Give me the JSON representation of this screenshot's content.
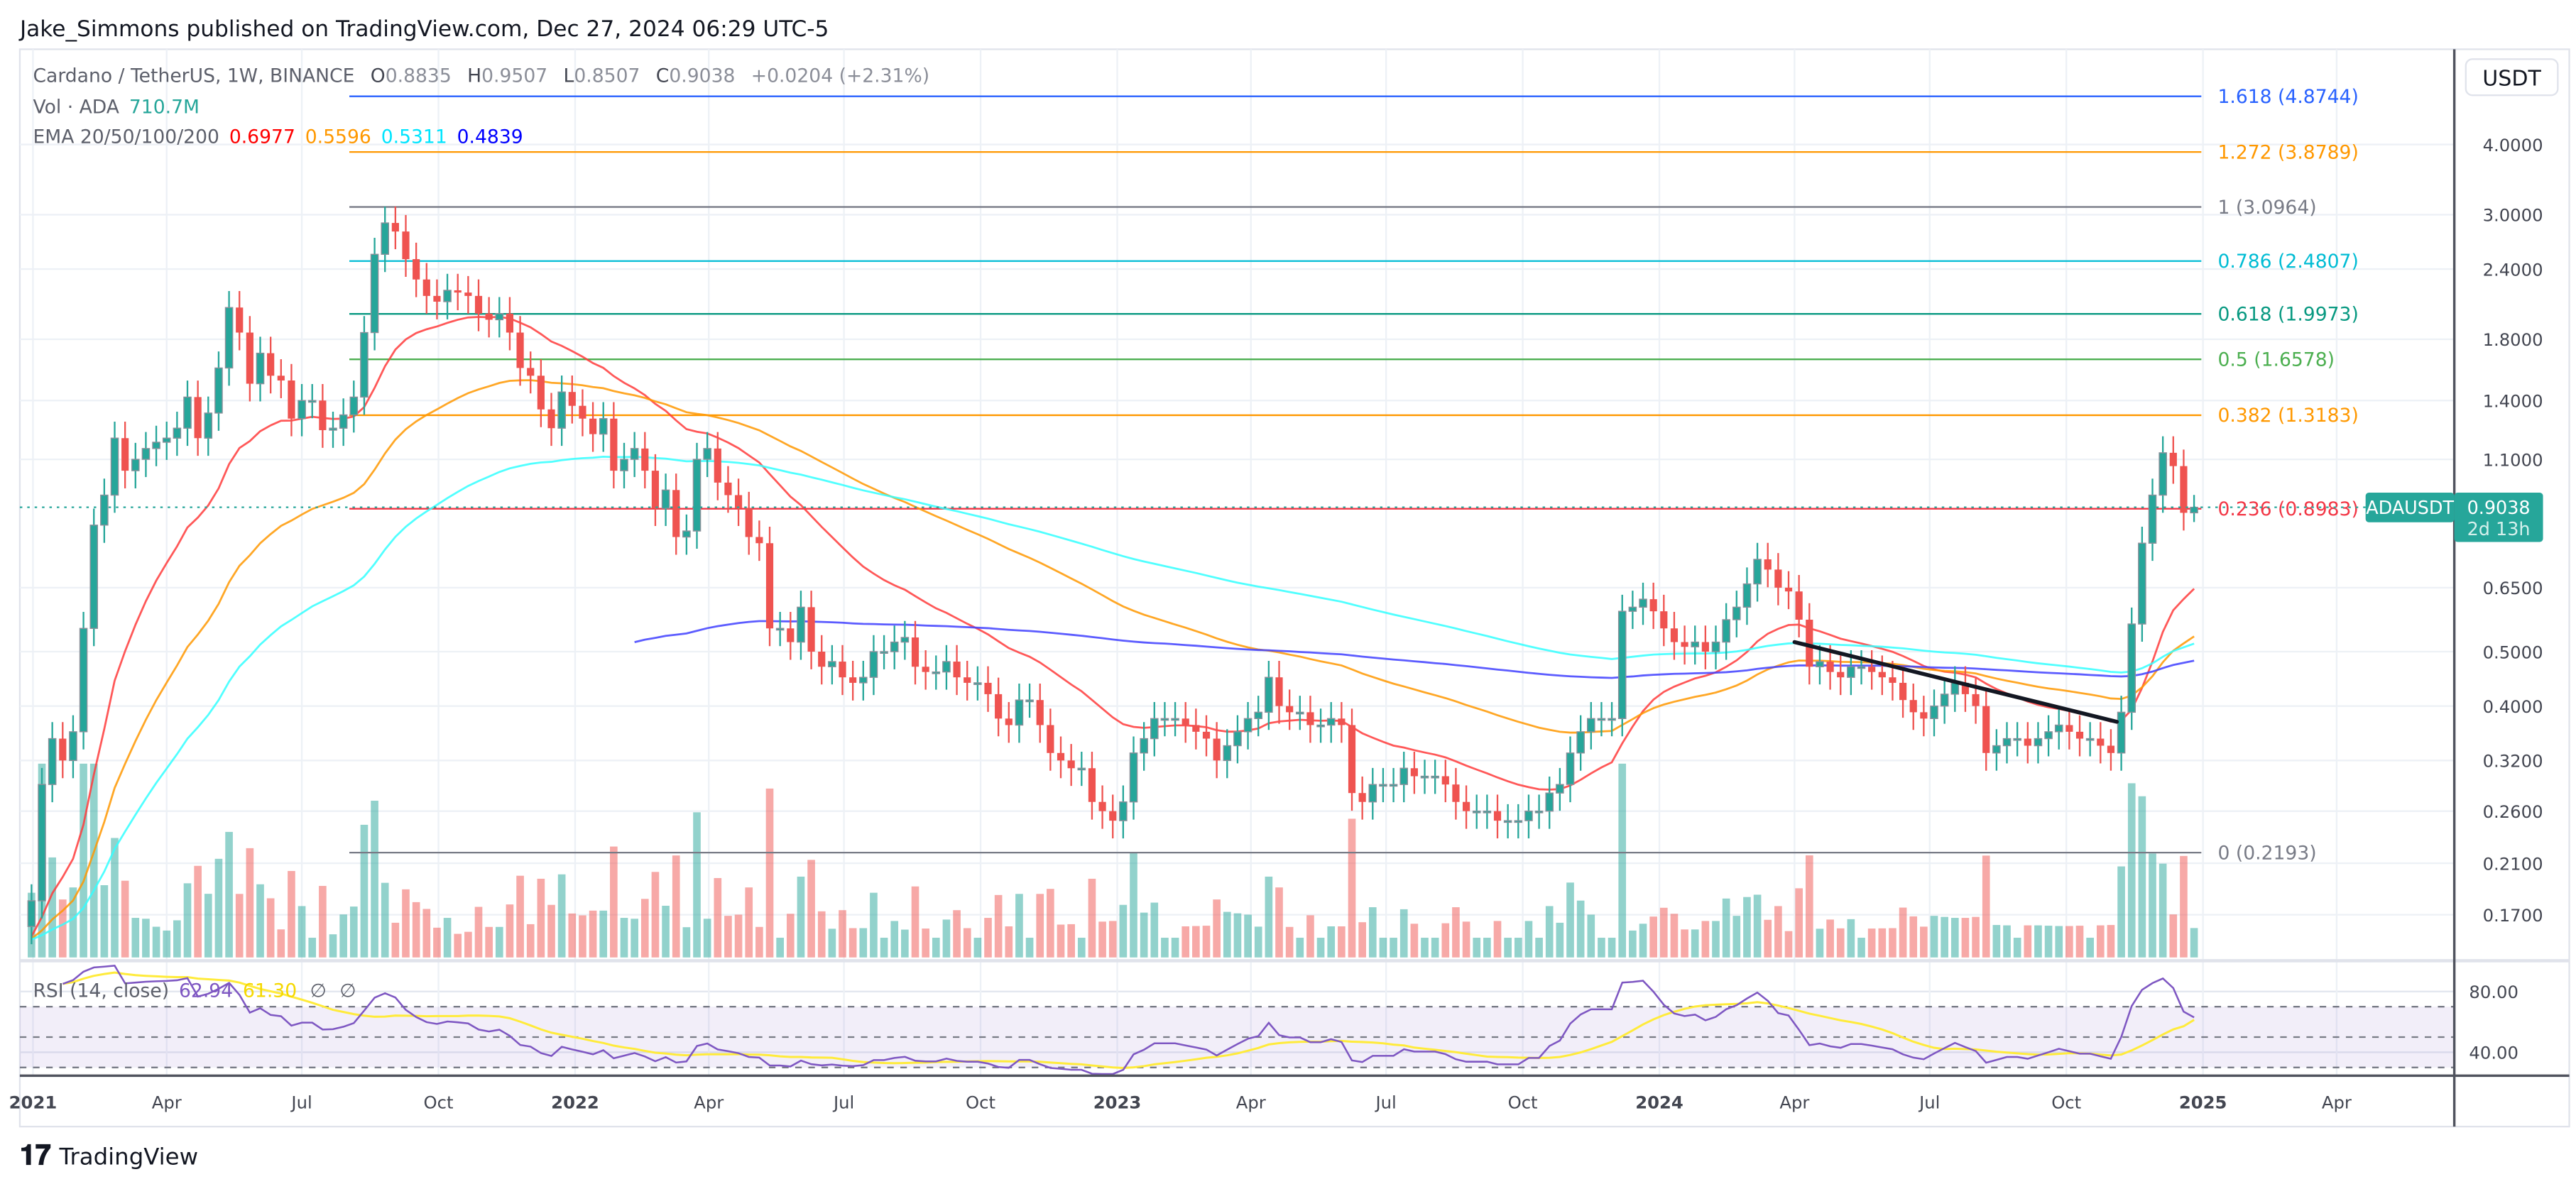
{
  "header": {
    "published": "Jake_Simmons published on TradingView.com, Dec 27, 2024 06:29 UTC-5"
  },
  "legend": {
    "symbol": "Cardano / TetherUS, 1W, BINANCE",
    "o_label": "O",
    "o": "0.8835",
    "h_label": "H",
    "h": "0.9507",
    "l_label": "L",
    "l": "0.8507",
    "c_label": "C",
    "c": "0.9038",
    "change": "+0.0204 (+2.31%)",
    "vol_label": "Vol · ADA",
    "vol": "710.7M",
    "ema_label": "EMA 20/50/100/200",
    "ema20": "0.6977",
    "ema50": "0.5596",
    "ema100": "0.5311",
    "ema200": "0.4839"
  },
  "rsi_legend": {
    "label": "RSI (14, close)",
    "rsi": "62.94",
    "sma": "61.30",
    "na1": "∅",
    "na2": "∅"
  },
  "price_axis": {
    "currency": "USDT",
    "ticks": [
      "4.0000",
      "3.0000",
      "2.4000",
      "1.8000",
      "1.4000",
      "1.1000",
      "0.6500",
      "0.5000",
      "0.4000",
      "0.3200",
      "0.2600",
      "0.2100",
      "0.1700"
    ]
  },
  "rsi_axis": {
    "ticks": [
      "80.00",
      "40.00"
    ]
  },
  "last_price": {
    "symbol": "ADAUSDT",
    "price": "0.9038",
    "countdown": "2d 13h"
  },
  "branding": {
    "logo": "TradingView"
  },
  "colors": {
    "up": "#26a69a",
    "down": "#ef5350",
    "ema20": "#ff3b3b",
    "ema50": "#ff9800",
    "ema100": "#33ffff",
    "ema200": "#3f3fff",
    "rsi": "#7e57c2",
    "rsi_ma": "#ffeb3b",
    "trendline": "#131722"
  },
  "chart_data": {
    "type": "candlestick",
    "symbol": "ADAUSDT",
    "interval": "1W",
    "x_start": "2020-12-28",
    "scale": "log",
    "ylim": [
      0.15,
      5.6
    ],
    "grid": true,
    "x_ticks": [
      {
        "label": "2021",
        "date": "2021-01-01"
      },
      {
        "label": "Apr",
        "date": "2021-04-01"
      },
      {
        "label": "Jul",
        "date": "2021-07-01"
      },
      {
        "label": "Oct",
        "date": "2021-10-01"
      },
      {
        "label": "2022",
        "date": "2022-01-01"
      },
      {
        "label": "Apr",
        "date": "2022-04-01"
      },
      {
        "label": "Jul",
        "date": "2022-07-01"
      },
      {
        "label": "Oct",
        "date": "2022-10-01"
      },
      {
        "label": "2023",
        "date": "2023-01-01"
      },
      {
        "label": "Apr",
        "date": "2023-04-01"
      },
      {
        "label": "Jul",
        "date": "2023-07-01"
      },
      {
        "label": "Oct",
        "date": "2023-10-01"
      },
      {
        "label": "2024",
        "date": "2024-01-01"
      },
      {
        "label": "Apr",
        "date": "2024-04-01"
      },
      {
        "label": "Jul",
        "date": "2024-07-01"
      },
      {
        "label": "Oct",
        "date": "2024-10-01"
      },
      {
        "label": "2025",
        "date": "2025-01-01"
      },
      {
        "label": "Apr",
        "date": "2025-04-01"
      }
    ],
    "y_ticks": [
      4.0,
      3.0,
      2.4,
      1.8,
      1.4,
      1.1,
      0.65,
      0.5,
      0.4,
      0.32,
      0.26,
      0.21,
      0.17
    ],
    "closes": [
      0.18,
      0.29,
      0.35,
      0.32,
      0.36,
      0.55,
      0.84,
      0.95,
      1.2,
      1.05,
      1.1,
      1.15,
      1.18,
      1.2,
      1.25,
      1.42,
      1.2,
      1.33,
      1.6,
      2.05,
      1.85,
      1.5,
      1.7,
      1.55,
      1.52,
      1.3,
      1.4,
      1.4,
      1.24,
      1.25,
      1.32,
      1.42,
      1.85,
      2.55,
      2.9,
      2.8,
      2.5,
      2.3,
      2.15,
      2.1,
      2.2,
      2.18,
      2.15,
      2.0,
      1.95,
      2.0,
      1.85,
      1.6,
      1.55,
      1.35,
      1.25,
      1.45,
      1.37,
      1.3,
      1.22,
      1.3,
      1.05,
      1.1,
      1.15,
      1.05,
      0.9,
      0.97,
      0.8,
      0.82,
      1.1,
      1.15,
      1.0,
      0.95,
      0.9,
      0.8,
      0.78,
      0.55,
      0.55,
      0.52,
      0.6,
      0.5,
      0.47,
      0.48,
      0.45,
      0.44,
      0.45,
      0.5,
      0.5,
      0.52,
      0.53,
      0.47,
      0.46,
      0.46,
      0.48,
      0.45,
      0.44,
      0.44,
      0.42,
      0.38,
      0.37,
      0.41,
      0.41,
      0.37,
      0.33,
      0.32,
      0.31,
      0.31,
      0.27,
      0.26,
      0.25,
      0.27,
      0.33,
      0.35,
      0.38,
      0.38,
      0.38,
      0.37,
      0.36,
      0.35,
      0.32,
      0.34,
      0.36,
      0.38,
      0.39,
      0.45,
      0.4,
      0.39,
      0.39,
      0.37,
      0.37,
      0.38,
      0.37,
      0.28,
      0.27,
      0.29,
      0.29,
      0.29,
      0.31,
      0.3,
      0.3,
      0.3,
      0.29,
      0.27,
      0.26,
      0.26,
      0.26,
      0.25,
      0.25,
      0.25,
      0.26,
      0.26,
      0.28,
      0.29,
      0.33,
      0.36,
      0.38,
      0.38,
      0.38,
      0.59,
      0.6,
      0.62,
      0.59,
      0.55,
      0.52,
      0.51,
      0.52,
      0.5,
      0.52,
      0.57,
      0.6,
      0.66,
      0.73,
      0.7,
      0.65,
      0.64,
      0.57,
      0.47,
      0.48,
      0.46,
      0.45,
      0.47,
      0.47,
      0.46,
      0.45,
      0.44,
      0.41,
      0.39,
      0.38,
      0.4,
      0.42,
      0.44,
      0.42,
      0.4,
      0.33,
      0.34,
      0.35,
      0.35,
      0.34,
      0.35,
      0.36,
      0.37,
      0.36,
      0.35,
      0.35,
      0.34,
      0.33,
      0.39,
      0.56,
      0.78,
      0.95,
      1.13,
      1.07,
      0.8835,
      0.9038
    ],
    "last_candle": {
      "open": 0.8835,
      "high": 0.9507,
      "low": 0.8507,
      "close": 0.9038
    },
    "fib_levels": [
      {
        "level": "1.618",
        "price": 4.8744,
        "label": "1.618 (4.8744)",
        "color": "#2962ff"
      },
      {
        "level": "1.272",
        "price": 3.8789,
        "label": "1.272 (3.8789)",
        "color": "#ff9800"
      },
      {
        "level": "1",
        "price": 3.0964,
        "label": "1 (3.0964)",
        "color": "#787b86"
      },
      {
        "level": "0.786",
        "price": 2.4807,
        "label": "0.786 (2.4807)",
        "color": "#00bcd4"
      },
      {
        "level": "0.618",
        "price": 1.9973,
        "label": "0.618 (1.9973)",
        "color": "#089981"
      },
      {
        "level": "0.5",
        "price": 1.6578,
        "label": "0.5 (1.6578)",
        "color": "#4caf50"
      },
      {
        "level": "0.382",
        "price": 1.3183,
        "label": "0.382 (1.3183)",
        "color": "#ff9800"
      },
      {
        "level": "0.236",
        "price": 0.8983,
        "label": "0.236 (0.8983)",
        "color": "#f23645"
      },
      {
        "level": "0",
        "price": 0.2193,
        "label": "0 (0.2193)",
        "color": "#787b86"
      }
    ],
    "fib_start": "2021-08-02",
    "trendline": [
      {
        "date": "2024-04-01",
        "price": 0.52
      },
      {
        "date": "2024-11-04",
        "price": 0.375
      }
    ],
    "ema_periods": [
      20,
      50,
      100,
      200
    ],
    "rsi": {
      "period": 14,
      "ma_period": 14,
      "levels": [
        70,
        50,
        30
      ],
      "last": 62.94,
      "ma_last": 61.3
    }
  }
}
